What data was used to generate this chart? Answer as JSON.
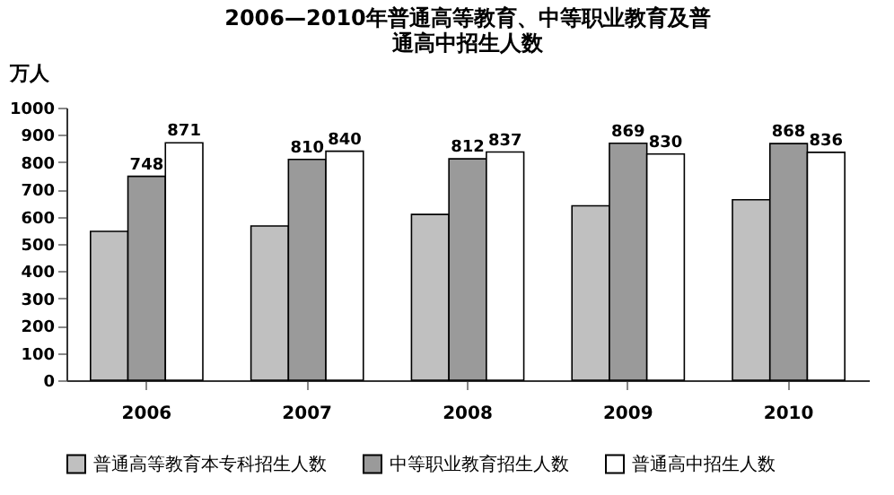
{
  "chart_data": {
    "type": "bar",
    "title": [
      "2006—2010年普通高等教育、中等职业教育及普",
      "通高中招生人数"
    ],
    "ylabel": "万人",
    "categories": [
      "2006",
      "2007",
      "2008",
      "2009",
      "2010"
    ],
    "series": [
      {
        "name": "普通高等教育本专科招生人数",
        "color": "#c0c0c0",
        "values": [
          546,
          566,
          608,
          640,
          662
        ]
      },
      {
        "name": "中等职业教育招生人数",
        "color": "#9a9a9a",
        "values": [
          748,
          810,
          812,
          869,
          868
        ],
        "value_labels": [
          "748",
          "810",
          "812",
          "869",
          "868"
        ]
      },
      {
        "name": "普通高中招生人数",
        "color": "#ffffff",
        "values": [
          871,
          840,
          837,
          830,
          836
        ],
        "value_labels": [
          "871",
          "840",
          "837",
          "830",
          "836"
        ]
      }
    ],
    "ylim": [
      0,
      1000
    ],
    "yticks": [
      0,
      100,
      200,
      300,
      400,
      500,
      600,
      700,
      800,
      900,
      1000
    ],
    "grid": false,
    "legend": "bottom"
  }
}
